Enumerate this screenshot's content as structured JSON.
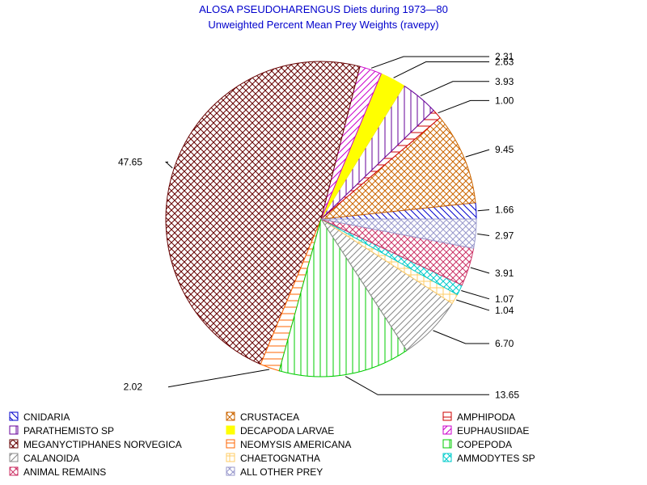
{
  "chart_data": {
    "type": "pie",
    "title": "ALOSA PSEUDOHARENGUS Diets during 1973—80",
    "subtitle": "Unweighted Percent Mean Prey Weights (ravepy)",
    "slices": [
      {
        "name": "CNIDARIA",
        "value": 1.66,
        "label": "1.66",
        "color": "#0000cc",
        "pattern": "diag-rl"
      },
      {
        "name": "CRUSTACEA",
        "value": 9.45,
        "label": "9.45",
        "color": "#cc6600",
        "pattern": "cross-diag"
      },
      {
        "name": "AMPHIPODA",
        "value": 1.0,
        "label": "1.00",
        "color": "#cc0000",
        "pattern": "hlines"
      },
      {
        "name": "PARATHEMISTO SP",
        "value": 3.93,
        "label": "3.93",
        "color": "#660099",
        "pattern": "vlines"
      },
      {
        "name": "DECAPODA LARVAE",
        "value": 2.63,
        "label": "2.63",
        "color": "#ffff00",
        "pattern": "solid"
      },
      {
        "name": "EUPHAUSIIDAE",
        "value": 2.31,
        "label": "2.31",
        "color": "#cc00cc",
        "pattern": "diag-lr"
      },
      {
        "name": "MEGANYCTIPHANES NORVEGICA",
        "value": 47.65,
        "label": "47.65",
        "color": "#660000",
        "pattern": "cross-diag"
      },
      {
        "name": "NEOMYSIS AMERICANA",
        "value": 2.02,
        "label": "2.02",
        "color": "#ff6600",
        "pattern": "hlines"
      },
      {
        "name": "COPEPODA",
        "value": 13.65,
        "label": "13.65",
        "color": "#00cc00",
        "pattern": "vlines"
      },
      {
        "name": "CALANOIDA",
        "value": 6.7,
        "label": "6.70",
        "color": "#888888",
        "pattern": "diag-lr"
      },
      {
        "name": "CHAETOGNATHA",
        "value": 1.04,
        "label": "1.04",
        "color": "#ffcc66",
        "pattern": "grid"
      },
      {
        "name": "AMMODYTES SP",
        "value": 1.07,
        "label": "1.07",
        "color": "#00cccc",
        "pattern": "cross-diag"
      },
      {
        "name": "ANIMAL REMAINS",
        "value": 3.91,
        "label": "3.91",
        "color": "#cc3366",
        "pattern": "cross-diag"
      },
      {
        "name": "ALL OTHER PREY",
        "value": 2.97,
        "label": "2.97",
        "color": "#9999cc",
        "pattern": "cross-diag"
      }
    ],
    "legend_position": "bottom"
  }
}
